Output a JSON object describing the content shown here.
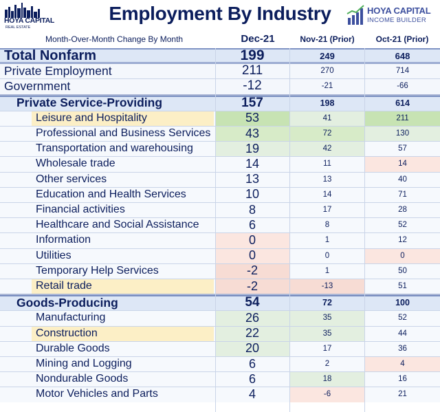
{
  "header": {
    "title": "Employment By Industry",
    "subtitle": "Month-Over-Month Change By Month",
    "col1": "Dec-21",
    "col2": "Nov-21 (Prior)",
    "col3": "Oct-21 (Prior)"
  },
  "logos": {
    "left_line1": "HOYA CAPITAL",
    "left_line2": "REAL ESTATE",
    "right_line1": "HOYA CAPITAL",
    "right_line2": "INCOME BUILDER"
  },
  "colors": {
    "text": "#0b1d5c",
    "band": "#dde7f6",
    "highlight": "#fcefc6",
    "positive": "#c7e3b3",
    "negative": "#f7dcd4"
  },
  "rows": [
    {
      "label": "Total Nonfarm",
      "dec": "199",
      "nov": "249",
      "oct": "648"
    },
    {
      "label": "Private Employment",
      "dec": "211",
      "nov": "270",
      "oct": "714"
    },
    {
      "label": "Government",
      "dec": "-12",
      "nov": "-21",
      "oct": "-66"
    },
    {
      "label": "Private Service-Providing",
      "dec": "157",
      "nov": "198",
      "oct": "614"
    },
    {
      "label": "Leisure and Hospitality",
      "dec": "53",
      "nov": "41",
      "oct": "211"
    },
    {
      "label": "Professional and Business Services",
      "dec": "43",
      "nov": "72",
      "oct": "130"
    },
    {
      "label": "Transportation and warehousing",
      "dec": "19",
      "nov": "42",
      "oct": "57"
    },
    {
      "label": "Wholesale trade",
      "dec": "14",
      "nov": "11",
      "oct": "14"
    },
    {
      "label": "Other services",
      "dec": "13",
      "nov": "13",
      "oct": "40"
    },
    {
      "label": "Education and Health Services",
      "dec": "10",
      "nov": "14",
      "oct": "71"
    },
    {
      "label": "Financial activities",
      "dec": "8",
      "nov": "17",
      "oct": "28"
    },
    {
      "label": "Healthcare and Social Assistance",
      "dec": "6",
      "nov": "8",
      "oct": "52"
    },
    {
      "label": "Information",
      "dec": "0",
      "nov": "1",
      "oct": "12"
    },
    {
      "label": "Utilities",
      "dec": "0",
      "nov": "0",
      "oct": "0"
    },
    {
      "label": "Temporary Help Services",
      "dec": "-2",
      "nov": "1",
      "oct": "50"
    },
    {
      "label": "Retail trade",
      "dec": "-2",
      "nov": "-13",
      "oct": "51"
    },
    {
      "label": "Goods-Producing",
      "dec": "54",
      "nov": "72",
      "oct": "100"
    },
    {
      "label": "Manufacturing",
      "dec": "26",
      "nov": "35",
      "oct": "52"
    },
    {
      "label": "Construction",
      "dec": "22",
      "nov": "35",
      "oct": "44"
    },
    {
      "label": "Durable Goods",
      "dec": "20",
      "nov": "17",
      "oct": "36"
    },
    {
      "label": "Mining and Logging",
      "dec": "6",
      "nov": "2",
      "oct": "4"
    },
    {
      "label": "Nondurable Goods",
      "dec": "6",
      "nov": "18",
      "oct": "16"
    },
    {
      "label": "Motor Vehicles and Parts",
      "dec": "4",
      "nov": "-6",
      "oct": "21"
    }
  ]
}
